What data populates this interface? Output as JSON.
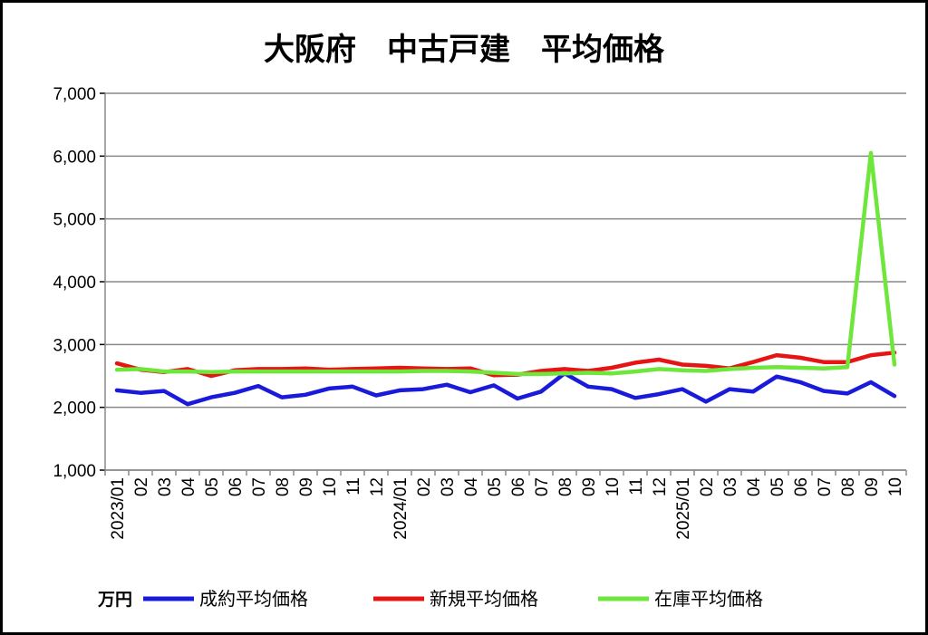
{
  "chart_data": {
    "type": "line",
    "title": "大阪府　中古戸建　平均価格",
    "unit_label": "万円",
    "ylim": [
      1000,
      7000
    ],
    "yticks": [
      1000,
      2000,
      3000,
      4000,
      5000,
      6000,
      7000
    ],
    "ytick_labels": [
      "1,000",
      "2,000",
      "3,000",
      "4,000",
      "5,000",
      "6,000",
      "7,000"
    ],
    "grid": true,
    "legend_position": "bottom",
    "categories": [
      "2023/01",
      "02",
      "03",
      "04",
      "05",
      "06",
      "07",
      "08",
      "09",
      "10",
      "11",
      "12",
      "2024/01",
      "02",
      "03",
      "04",
      "05",
      "06",
      "07",
      "08",
      "09",
      "10",
      "11",
      "12",
      "2025/01",
      "02",
      "03",
      "04",
      "05",
      "06",
      "07",
      "08",
      "09",
      "10"
    ],
    "series": [
      {
        "name": "成約平均価格",
        "color": "#1a1adb",
        "values": [
          2270,
          2230,
          2260,
          2050,
          2160,
          2230,
          2340,
          2160,
          2200,
          2300,
          2330,
          2190,
          2270,
          2290,
          2360,
          2240,
          2350,
          2140,
          2250,
          2540,
          2330,
          2290,
          2150,
          2210,
          2290,
          2090,
          2290,
          2250,
          2490,
          2400,
          2260,
          2220,
          2400,
          2180
        ]
      },
      {
        "name": "新規平均価格",
        "color": "#e61414",
        "values": [
          2700,
          2600,
          2560,
          2610,
          2500,
          2590,
          2610,
          2610,
          2620,
          2600,
          2610,
          2620,
          2630,
          2620,
          2610,
          2620,
          2510,
          2520,
          2580,
          2610,
          2580,
          2630,
          2710,
          2760,
          2680,
          2660,
          2620,
          2720,
          2830,
          2790,
          2720,
          2720,
          2830,
          2870
        ]
      },
      {
        "name": "在庫平均価格",
        "color": "#6ee63c",
        "values": [
          2600,
          2610,
          2570,
          2570,
          2560,
          2570,
          2570,
          2570,
          2570,
          2570,
          2570,
          2570,
          2570,
          2580,
          2580,
          2570,
          2550,
          2530,
          2530,
          2540,
          2550,
          2540,
          2570,
          2610,
          2590,
          2580,
          2610,
          2630,
          2640,
          2630,
          2620,
          2640,
          6050,
          2680
        ]
      }
    ]
  }
}
